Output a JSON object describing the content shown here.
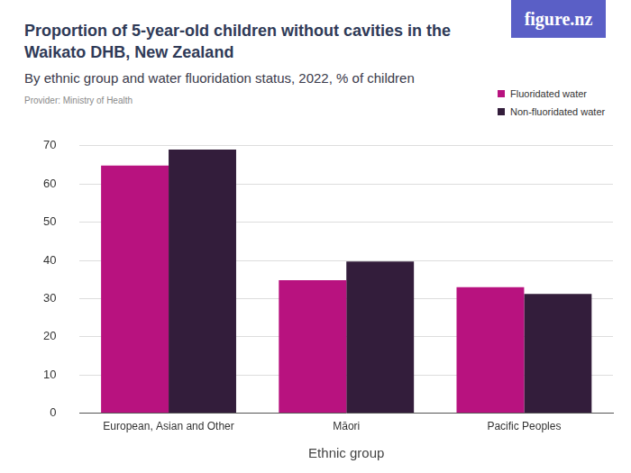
{
  "chart_data": {
    "type": "bar",
    "title": "Proportion of 5-year-old children without cavities in the Waikato DHB, New Zealand",
    "subtitle": "By ethnic group and water fluoridation status, 2022, % of children",
    "annotations": [
      "Provider: Ministry of Health",
      "figure.nz"
    ],
    "x_label": "Ethnic group",
    "categories": [
      "European, Asian and Other",
      "Māori",
      "Pacific Peoples"
    ],
    "series": [
      {
        "name": "Fluoridated water",
        "color": "#b8127f",
        "values": [
          64.8,
          34.8,
          33.0
        ]
      },
      {
        "name": "Non-fluoridated water",
        "color": "#331d3b",
        "values": [
          69.0,
          39.7,
          31.2
        ]
      }
    ],
    "ylim": [
      0,
      70
    ],
    "yticks": [
      0,
      10,
      20,
      30,
      40,
      50,
      60,
      70
    ],
    "grid": true,
    "legend": "top-right"
  }
}
